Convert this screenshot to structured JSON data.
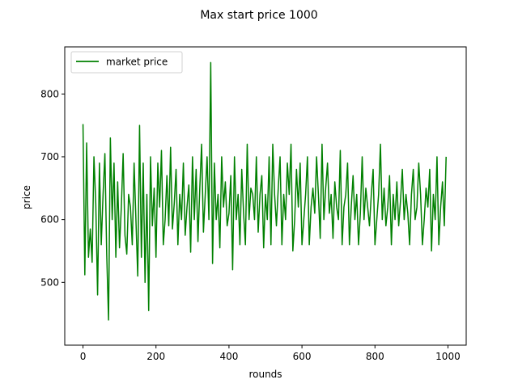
{
  "chart_data": {
    "type": "line",
    "title": "Max start price 1000",
    "xlabel": "rounds",
    "ylabel": "price",
    "xlim": [
      -50,
      1050
    ],
    "ylim": [
      400,
      875
    ],
    "xticks": [
      0,
      200,
      400,
      600,
      800,
      1000
    ],
    "yticks": [
      500,
      600,
      700,
      800
    ],
    "grid": false,
    "legend_position": "upper-left",
    "series": [
      {
        "name": "market price",
        "color": "#008000",
        "x_start": 0,
        "x_step": 5,
        "values": [
          752,
          512,
          722,
          540,
          585,
          532,
          700,
          625,
          480,
          690,
          560,
          640,
          705,
          545,
          440,
          730,
          600,
          690,
          540,
          660,
          555,
          620,
          705,
          575,
          545,
          640,
          620,
          560,
          690,
          600,
          510,
          750,
          540,
          690,
          500,
          640,
          455,
          700,
          590,
          650,
          540,
          690,
          620,
          710,
          560,
          600,
          670,
          590,
          715,
          585,
          625,
          680,
          560,
          640,
          600,
          690,
          575,
          620,
          655,
          548,
          700,
          600,
          680,
          565,
          650,
          720,
          580,
          640,
          700,
          600,
          850,
          530,
          690,
          600,
          640,
          555,
          700,
          620,
          660,
          590,
          610,
          670,
          520,
          700,
          600,
          640,
          560,
          680,
          610,
          560,
          720,
          600,
          650,
          640,
          600,
          700,
          580,
          640,
          670,
          555,
          640,
          600,
          700,
          560,
          720,
          640,
          590,
          650,
          700,
          560,
          640,
          600,
          690,
          640,
          720,
          550,
          600,
          680,
          620,
          690,
          560,
          600,
          640,
          700,
          560,
          620,
          650,
          610,
          700,
          640,
          570,
          720,
          600,
          650,
          690,
          610,
          640,
          570,
          660,
          620,
          600,
          710,
          560,
          620,
          640,
          690,
          560,
          620,
          670,
          600,
          640,
          560,
          610,
          700,
          600,
          650,
          620,
          590,
          640,
          680,
          560,
          600,
          640,
          720,
          600,
          650,
          590,
          620,
          670,
          560,
          640,
          600,
          660,
          590,
          630,
          680,
          600,
          640,
          610,
          560,
          640,
          680,
          600,
          620,
          690,
          640,
          560,
          600,
          650,
          620,
          680,
          550,
          640,
          600,
          700,
          560,
          620,
          660,
          590,
          700
        ]
      }
    ]
  }
}
